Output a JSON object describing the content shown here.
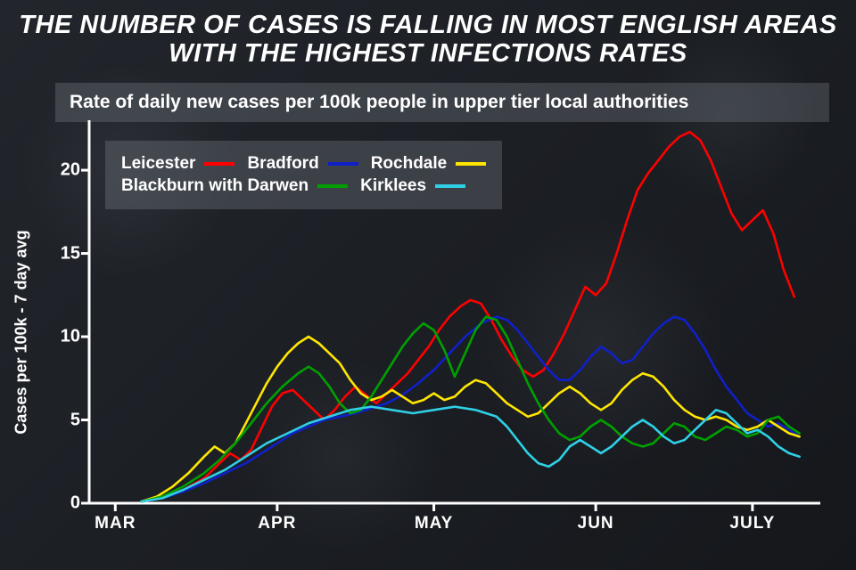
{
  "headline": "THE NUMBER OF CASES IS FALLING IN MOST ENGLISH AREAS WITH THE HIGHEST INFECTIONS RATES",
  "headline_fontsize": 29,
  "subtitle": "Rate of daily new cases per 100k people in upper tier local authorities",
  "subtitle_fontsize": 21,
  "chart": {
    "type": "line",
    "background_color": "#1a1d22",
    "ylabel": "Cases per 100k - 7 day avg",
    "ylabel_fontsize": 18,
    "ylim": [
      0,
      23
    ],
    "yticks": [
      0,
      5,
      10,
      15,
      20
    ],
    "ytick_fontsize": 20,
    "xlim": [
      0,
      140
    ],
    "xticks": [
      {
        "pos": 5,
        "label": "MAR"
      },
      {
        "pos": 36,
        "label": "APR"
      },
      {
        "pos": 66,
        "label": "MAY"
      },
      {
        "pos": 97,
        "label": "JUN"
      },
      {
        "pos": 127,
        "label": "JULY"
      }
    ],
    "xtick_fontsize": 19,
    "axis_color": "#ffffff",
    "axis_width": 3,
    "tick_len": 9,
    "line_width": 2.6,
    "legend": {
      "fontsize": 19,
      "rows": [
        [
          {
            "label": "Leicester",
            "color": "#ff0000"
          },
          {
            "label": "Bradford",
            "color": "#1020c8"
          },
          {
            "label": "Rochdale",
            "color": "#ffe600"
          }
        ],
        [
          {
            "label": "Blackburn with Darwen",
            "color": "#00a000"
          },
          {
            "label": "Kirklees",
            "color": "#2fd0e6"
          }
        ]
      ]
    },
    "series": [
      {
        "name": "Leicester",
        "color": "#ff0000",
        "points": [
          [
            10,
            0.1
          ],
          [
            14,
            0.3
          ],
          [
            18,
            0.8
          ],
          [
            22,
            1.5
          ],
          [
            25,
            2.4
          ],
          [
            27,
            3.0
          ],
          [
            29,
            2.6
          ],
          [
            31,
            3.2
          ],
          [
            33,
            4.5
          ],
          [
            35,
            5.8
          ],
          [
            37,
            6.6
          ],
          [
            39,
            6.8
          ],
          [
            41,
            6.2
          ],
          [
            43,
            5.6
          ],
          [
            45,
            5.0
          ],
          [
            47,
            5.6
          ],
          [
            49,
            6.4
          ],
          [
            51,
            7.0
          ],
          [
            53,
            6.5
          ],
          [
            55,
            6.0
          ],
          [
            57,
            6.6
          ],
          [
            59,
            7.2
          ],
          [
            61,
            7.8
          ],
          [
            63,
            8.6
          ],
          [
            65,
            9.4
          ],
          [
            67,
            10.4
          ],
          [
            69,
            11.2
          ],
          [
            71,
            11.8
          ],
          [
            73,
            12.2
          ],
          [
            75,
            12.0
          ],
          [
            77,
            11.0
          ],
          [
            79,
            9.8
          ],
          [
            81,
            8.8
          ],
          [
            83,
            8.0
          ],
          [
            85,
            7.6
          ],
          [
            87,
            8.0
          ],
          [
            89,
            9.0
          ],
          [
            91,
            10.2
          ],
          [
            93,
            11.6
          ],
          [
            95,
            13.0
          ],
          [
            97,
            12.5
          ],
          [
            99,
            13.2
          ],
          [
            101,
            15.0
          ],
          [
            103,
            17.0
          ],
          [
            105,
            18.8
          ],
          [
            107,
            19.8
          ],
          [
            109,
            20.6
          ],
          [
            111,
            21.4
          ],
          [
            113,
            22.0
          ],
          [
            115,
            22.3
          ],
          [
            117,
            21.8
          ],
          [
            119,
            20.6
          ],
          [
            121,
            19.0
          ],
          [
            123,
            17.4
          ],
          [
            125,
            16.4
          ],
          [
            127,
            17.0
          ],
          [
            129,
            17.6
          ],
          [
            131,
            16.2
          ],
          [
            133,
            14.0
          ],
          [
            135,
            12.4
          ]
        ]
      },
      {
        "name": "Bradford",
        "color": "#1020c8",
        "points": [
          [
            10,
            0.1
          ],
          [
            14,
            0.3
          ],
          [
            18,
            0.7
          ],
          [
            22,
            1.2
          ],
          [
            26,
            1.8
          ],
          [
            30,
            2.4
          ],
          [
            33,
            3.0
          ],
          [
            36,
            3.6
          ],
          [
            39,
            4.2
          ],
          [
            42,
            4.6
          ],
          [
            45,
            5.0
          ],
          [
            48,
            5.2
          ],
          [
            51,
            5.4
          ],
          [
            54,
            5.7
          ],
          [
            57,
            6.0
          ],
          [
            60,
            6.5
          ],
          [
            63,
            7.2
          ],
          [
            66,
            8.0
          ],
          [
            69,
            9.0
          ],
          [
            72,
            10.0
          ],
          [
            75,
            10.8
          ],
          [
            78,
            11.2
          ],
          [
            80,
            11.0
          ],
          [
            82,
            10.4
          ],
          [
            84,
            9.6
          ],
          [
            86,
            8.8
          ],
          [
            88,
            8.0
          ],
          [
            90,
            7.4
          ],
          [
            92,
            7.4
          ],
          [
            94,
            8.0
          ],
          [
            96,
            8.8
          ],
          [
            98,
            9.4
          ],
          [
            100,
            9.0
          ],
          [
            102,
            8.4
          ],
          [
            104,
            8.6
          ],
          [
            106,
            9.4
          ],
          [
            108,
            10.2
          ],
          [
            110,
            10.8
          ],
          [
            112,
            11.2
          ],
          [
            114,
            11.0
          ],
          [
            116,
            10.2
          ],
          [
            118,
            9.2
          ],
          [
            120,
            8.0
          ],
          [
            122,
            7.0
          ],
          [
            124,
            6.2
          ],
          [
            126,
            5.4
          ],
          [
            128,
            5.0
          ],
          [
            130,
            4.6
          ],
          [
            132,
            4.8
          ],
          [
            134,
            4.4
          ],
          [
            136,
            4.0
          ]
        ]
      },
      {
        "name": "Rochdale",
        "color": "#ffe600",
        "points": [
          [
            10,
            0.1
          ],
          [
            13,
            0.4
          ],
          [
            16,
            1.0
          ],
          [
            19,
            1.8
          ],
          [
            22,
            2.8
          ],
          [
            24,
            3.4
          ],
          [
            26,
            3.0
          ],
          [
            28,
            3.6
          ],
          [
            30,
            4.8
          ],
          [
            32,
            6.0
          ],
          [
            34,
            7.2
          ],
          [
            36,
            8.2
          ],
          [
            38,
            9.0
          ],
          [
            40,
            9.6
          ],
          [
            42,
            10.0
          ],
          [
            44,
            9.6
          ],
          [
            46,
            9.0
          ],
          [
            48,
            8.4
          ],
          [
            50,
            7.4
          ],
          [
            52,
            6.6
          ],
          [
            54,
            6.2
          ],
          [
            56,
            6.4
          ],
          [
            58,
            6.8
          ],
          [
            60,
            6.4
          ],
          [
            62,
            6.0
          ],
          [
            64,
            6.2
          ],
          [
            66,
            6.6
          ],
          [
            68,
            6.2
          ],
          [
            70,
            6.4
          ],
          [
            72,
            7.0
          ],
          [
            74,
            7.4
          ],
          [
            76,
            7.2
          ],
          [
            78,
            6.6
          ],
          [
            80,
            6.0
          ],
          [
            82,
            5.6
          ],
          [
            84,
            5.2
          ],
          [
            86,
            5.4
          ],
          [
            88,
            6.0
          ],
          [
            90,
            6.6
          ],
          [
            92,
            7.0
          ],
          [
            94,
            6.6
          ],
          [
            96,
            6.0
          ],
          [
            98,
            5.6
          ],
          [
            100,
            6.0
          ],
          [
            102,
            6.8
          ],
          [
            104,
            7.4
          ],
          [
            106,
            7.8
          ],
          [
            108,
            7.6
          ],
          [
            110,
            7.0
          ],
          [
            112,
            6.2
          ],
          [
            114,
            5.6
          ],
          [
            116,
            5.2
          ],
          [
            118,
            5.0
          ],
          [
            120,
            5.2
          ],
          [
            122,
            5.0
          ],
          [
            124,
            4.6
          ],
          [
            126,
            4.4
          ],
          [
            128,
            4.6
          ],
          [
            130,
            5.0
          ],
          [
            132,
            4.6
          ],
          [
            134,
            4.2
          ],
          [
            136,
            4.0
          ]
        ]
      },
      {
        "name": "Blackburn with Darwen",
        "color": "#00a000",
        "points": [
          [
            10,
            0.1
          ],
          [
            14,
            0.4
          ],
          [
            18,
            1.0
          ],
          [
            22,
            1.8
          ],
          [
            25,
            2.6
          ],
          [
            28,
            3.6
          ],
          [
            31,
            4.8
          ],
          [
            34,
            6.0
          ],
          [
            37,
            7.0
          ],
          [
            40,
            7.8
          ],
          [
            42,
            8.2
          ],
          [
            44,
            7.8
          ],
          [
            46,
            7.0
          ],
          [
            48,
            6.0
          ],
          [
            50,
            5.4
          ],
          [
            52,
            5.6
          ],
          [
            54,
            6.4
          ],
          [
            56,
            7.4
          ],
          [
            58,
            8.4
          ],
          [
            60,
            9.4
          ],
          [
            62,
            10.2
          ],
          [
            64,
            10.8
          ],
          [
            66,
            10.4
          ],
          [
            68,
            9.2
          ],
          [
            70,
            7.6
          ],
          [
            72,
            9.0
          ],
          [
            74,
            10.4
          ],
          [
            76,
            11.2
          ],
          [
            78,
            11.0
          ],
          [
            80,
            10.0
          ],
          [
            82,
            8.6
          ],
          [
            84,
            7.2
          ],
          [
            86,
            6.0
          ],
          [
            88,
            5.0
          ],
          [
            90,
            4.2
          ],
          [
            92,
            3.8
          ],
          [
            94,
            4.0
          ],
          [
            96,
            4.6
          ],
          [
            98,
            5.0
          ],
          [
            100,
            4.6
          ],
          [
            102,
            4.0
          ],
          [
            104,
            3.6
          ],
          [
            106,
            3.4
          ],
          [
            108,
            3.6
          ],
          [
            110,
            4.2
          ],
          [
            112,
            4.8
          ],
          [
            114,
            4.6
          ],
          [
            116,
            4.0
          ],
          [
            118,
            3.8
          ],
          [
            120,
            4.2
          ],
          [
            122,
            4.6
          ],
          [
            124,
            4.4
          ],
          [
            126,
            4.0
          ],
          [
            128,
            4.2
          ],
          [
            130,
            5.0
          ],
          [
            132,
            5.2
          ],
          [
            134,
            4.6
          ],
          [
            136,
            4.2
          ]
        ]
      },
      {
        "name": "Kirklees",
        "color": "#2fd0e6",
        "points": [
          [
            10,
            0.1
          ],
          [
            14,
            0.3
          ],
          [
            18,
            0.8
          ],
          [
            22,
            1.4
          ],
          [
            26,
            2.0
          ],
          [
            30,
            2.8
          ],
          [
            34,
            3.6
          ],
          [
            38,
            4.2
          ],
          [
            42,
            4.8
          ],
          [
            46,
            5.2
          ],
          [
            50,
            5.6
          ],
          [
            54,
            5.8
          ],
          [
            58,
            5.6
          ],
          [
            62,
            5.4
          ],
          [
            66,
            5.6
          ],
          [
            70,
            5.8
          ],
          [
            74,
            5.6
          ],
          [
            78,
            5.2
          ],
          [
            80,
            4.6
          ],
          [
            82,
            3.8
          ],
          [
            84,
            3.0
          ],
          [
            86,
            2.4
          ],
          [
            88,
            2.2
          ],
          [
            90,
            2.6
          ],
          [
            92,
            3.4
          ],
          [
            94,
            3.8
          ],
          [
            96,
            3.4
          ],
          [
            98,
            3.0
          ],
          [
            100,
            3.4
          ],
          [
            102,
            4.0
          ],
          [
            104,
            4.6
          ],
          [
            106,
            5.0
          ],
          [
            108,
            4.6
          ],
          [
            110,
            4.0
          ],
          [
            112,
            3.6
          ],
          [
            114,
            3.8
          ],
          [
            116,
            4.4
          ],
          [
            118,
            5.0
          ],
          [
            120,
            5.6
          ],
          [
            122,
            5.4
          ],
          [
            124,
            4.8
          ],
          [
            126,
            4.2
          ],
          [
            128,
            4.4
          ],
          [
            130,
            4.0
          ],
          [
            132,
            3.4
          ],
          [
            134,
            3.0
          ],
          [
            136,
            2.8
          ]
        ]
      }
    ]
  }
}
